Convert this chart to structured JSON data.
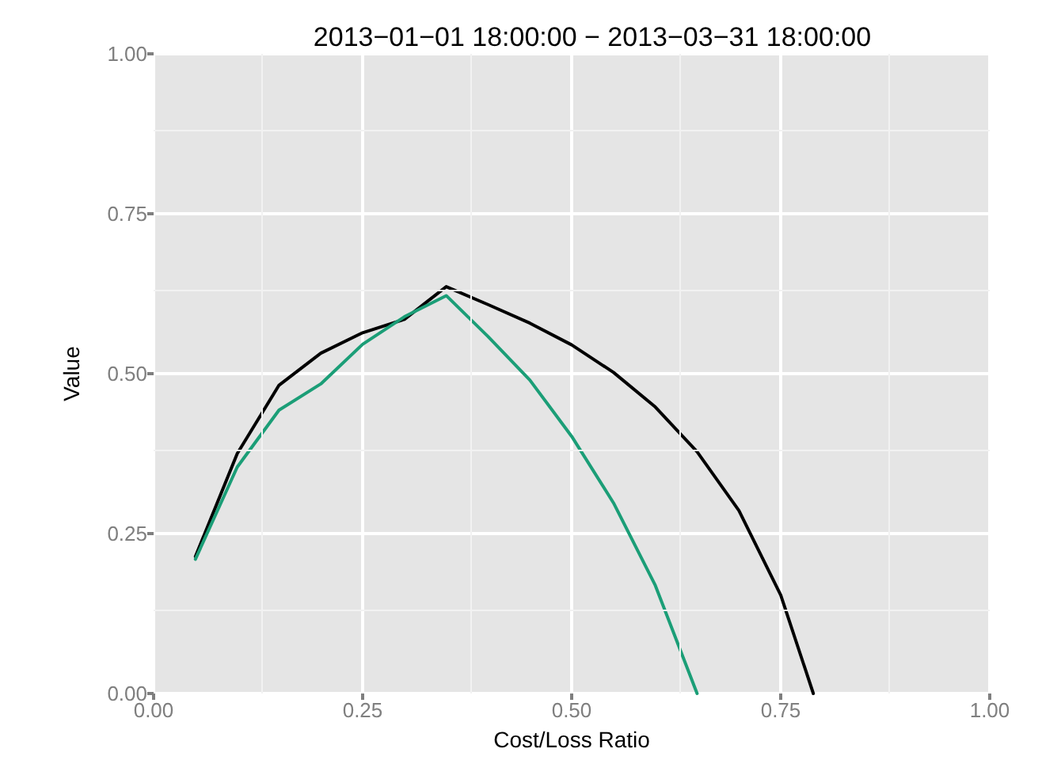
{
  "chart_data": {
    "type": "line",
    "title": "2013−01−01 18:00:00 − 2013−03−31 18:00:00",
    "xlabel": "Cost/Loss Ratio",
    "ylabel": "Value",
    "xlim": [
      0,
      1
    ],
    "xticks": [
      {
        "value": 0,
        "label": "0.00"
      },
      {
        "value": 0.25,
        "label": "0.25"
      },
      {
        "value": 0.5,
        "label": "0.50"
      },
      {
        "value": 0.75,
        "label": "0.75"
      },
      {
        "value": 1,
        "label": "1.00"
      }
    ],
    "ylim": [
      0,
      1
    ],
    "yticks": [
      {
        "value": 0,
        "label": "0.00"
      },
      {
        "value": 0.25,
        "label": "0.25"
      },
      {
        "value": 0.5,
        "label": "0.50"
      },
      {
        "value": 0.75,
        "label": "0.75"
      },
      {
        "value": 1,
        "label": "1.00"
      }
    ],
    "grid": true,
    "marker": "none",
    "line_style": "solid",
    "series": [
      {
        "color": "#000000",
        "x": [
          0.05,
          0.1,
          0.15,
          0.2,
          0.25,
          0.3,
          0.35,
          0.4,
          0.45,
          0.5,
          0.55,
          0.6,
          0.65,
          0.7,
          0.75,
          0.789
        ],
        "values": [
          0.214,
          0.375,
          0.482,
          0.532,
          0.564,
          0.585,
          0.636,
          0.608,
          0.579,
          0.545,
          0.502,
          0.448,
          0.378,
          0.286,
          0.154,
          0
        ]
      },
      {
        "color": "#1b9e77",
        "x": [
          0.05,
          0.1,
          0.15,
          0.2,
          0.25,
          0.3,
          0.35,
          0.4,
          0.45,
          0.5,
          0.55,
          0.6,
          0.65
        ],
        "values": [
          0.21,
          0.354,
          0.443,
          0.484,
          0.546,
          0.589,
          0.622,
          0.558,
          0.49,
          0.402,
          0.298,
          0.169,
          0
        ]
      }
    ]
  }
}
